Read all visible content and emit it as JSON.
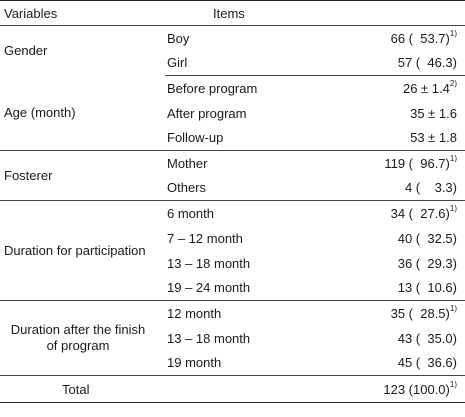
{
  "header": {
    "variables": "Variables",
    "items": "Items"
  },
  "groups": [
    {
      "variable": "Gender",
      "rows": [
        {
          "item": "Boy",
          "value": "66 (  53.7)",
          "sup": "1)"
        },
        {
          "item": "Girl",
          "value": "57 (  46.3)",
          "sup": ""
        }
      ]
    },
    {
      "variable": "Age (month)",
      "rows": [
        {
          "item": "Before program",
          "value": "26 ± 1.4",
          "sup": "2)"
        },
        {
          "item": "After program",
          "value": "35 ± 1.6",
          "sup": ""
        },
        {
          "item": "Follow-up",
          "value": "53 ± 1.8",
          "sup": ""
        }
      ]
    },
    {
      "variable": "Fosterer",
      "rows": [
        {
          "item": "Mother",
          "value": "119 (  96.7)",
          "sup": "1)"
        },
        {
          "item": "Others",
          "value": "4 (    3.3)",
          "sup": ""
        }
      ]
    },
    {
      "variable": "Duration for participation",
      "rows": [
        {
          "item": "6 month",
          "value": "34 (  27.6)",
          "sup": "1)"
        },
        {
          "item": "7 – 12 month",
          "value": "40 (  32.5)",
          "sup": ""
        },
        {
          "item": "13 – 18 month",
          "value": "36 (  29.3)",
          "sup": ""
        },
        {
          "item": "19 – 24 month",
          "value": "13 (  10.6)",
          "sup": ""
        }
      ]
    },
    {
      "variable": "Duration after the finish of program",
      "rows": [
        {
          "item": "12 month",
          "value": "35 (  28.5)",
          "sup": "1)"
        },
        {
          "item": "13 – 18 month",
          "value": "43 (  35.0)",
          "sup": ""
        },
        {
          "item": "19 month",
          "value": "45 (  36.6)",
          "sup": ""
        }
      ]
    }
  ],
  "total": {
    "label": "Total",
    "value": "123 (100.0)",
    "sup": "1)"
  }
}
